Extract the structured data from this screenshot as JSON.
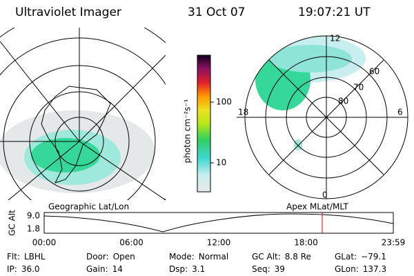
{
  "header": {
    "instrument": "Ultraviolet Imager",
    "date": "31 Oct 07",
    "time": "19:07:21 UT"
  },
  "geo_panel": {
    "label": "Geographic Lat/Lon"
  },
  "colorbar": {
    "label": "photon cm⁻²s⁻¹",
    "ticks": [
      "100",
      "10"
    ]
  },
  "polar_panel": {
    "label": "Apex MLat/MLT",
    "mlt_labels": [
      "12",
      "18",
      "6",
      "0"
    ],
    "lat_labels": [
      "60",
      "70",
      "80"
    ]
  },
  "altitude_plot": {
    "axis_label": "GC Alt",
    "yticks": [
      "9.0",
      "1.8"
    ],
    "xticks": [
      "00:00",
      "06:00",
      "12:00",
      "18:00",
      "23:59"
    ]
  },
  "status": [
    [
      {
        "label": "Flt:",
        "value": "LBHL"
      },
      {
        "label": "Door:",
        "value": "Open"
      },
      {
        "label": "Mode:",
        "value": "Normal"
      },
      {
        "label": "GC Alt:",
        "value": "8.8 Re"
      },
      {
        "label": "GLat:",
        "value": "−79.1"
      }
    ],
    [
      {
        "label": "IP:",
        "value": "36.0"
      },
      {
        "label": "Gain:",
        "value": "14"
      },
      {
        "label": "Dsp:",
        "value": "3.1"
      },
      {
        "label": "Seq:",
        "value": "39"
      },
      {
        "label": "GLon:",
        "value": "137.3"
      }
    ]
  ]
}
